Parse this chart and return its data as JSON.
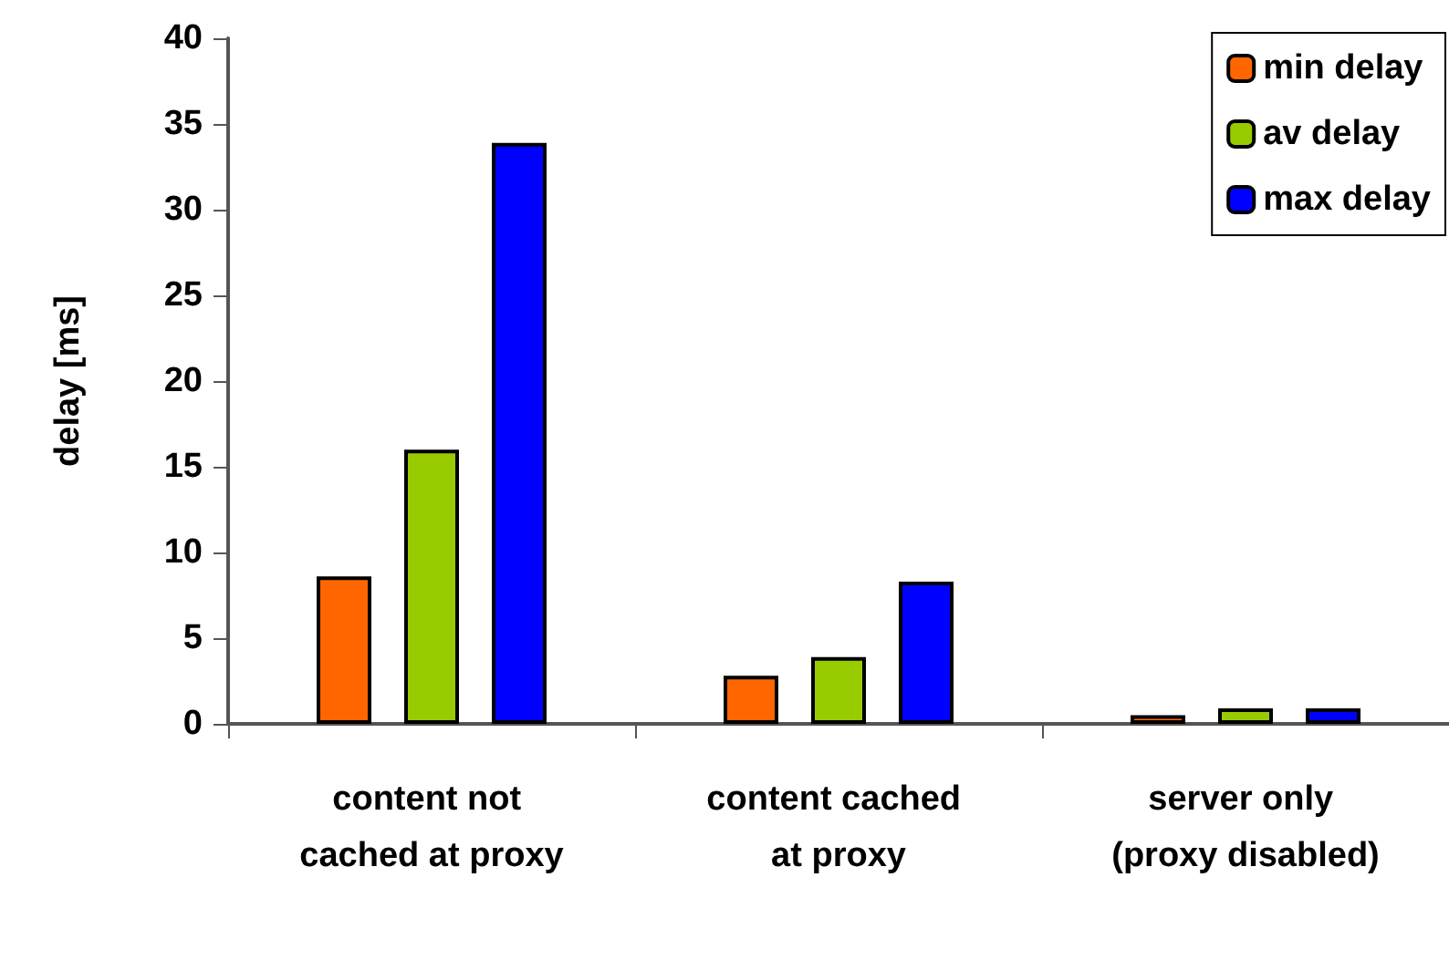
{
  "chart_data": {
    "type": "bar",
    "ylabel": "delay [ms]",
    "categories": [
      "content not cached at proxy",
      "content cached at proxy",
      "server only (proxy disabled)"
    ],
    "series": [
      {
        "name": "min delay",
        "color": "#ff6600",
        "values": [
          8.6,
          2.8,
          0.5
        ]
      },
      {
        "name": "av delay",
        "color": "#99cc00",
        "values": [
          16.0,
          3.9,
          0.9
        ]
      },
      {
        "name": "max delay",
        "color": "#0000ff",
        "values": [
          33.9,
          8.3,
          0.9
        ]
      }
    ],
    "ylim": [
      0,
      40
    ],
    "yticks": [
      0,
      5,
      10,
      15,
      20,
      25,
      30,
      35,
      40
    ],
    "grid": false,
    "legend": "top right"
  }
}
